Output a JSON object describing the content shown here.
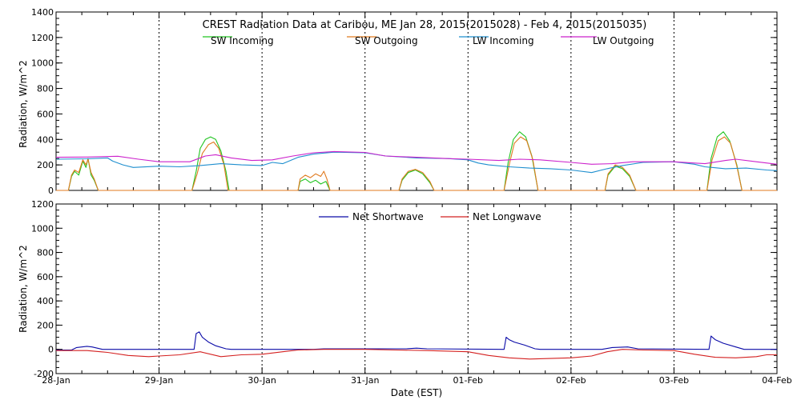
{
  "chart_data": [
    {
      "type": "line",
      "title": "CREST Radiation Data at Caribou, ME   Jan 28, 2015(2015028) - Feb  4, 2015(2015035)",
      "xlabel": "",
      "ylabel": "Radiation, W/m^2",
      "x_unit": "days since 28-Jan",
      "xlim": [
        0,
        7
      ],
      "ylim": [
        0,
        1400
      ],
      "yticks": [
        0,
        200,
        400,
        600,
        800,
        1000,
        1200,
        1400
      ],
      "xtick_labels": [
        "28-Jan",
        "29-Jan",
        "30-Jan",
        "31-Jan",
        "01-Feb",
        "02-Feb",
        "03-Feb",
        "04-Feb"
      ],
      "grid": true,
      "legend_position": "top",
      "series": [
        {
          "name": "SW Incoming",
          "color": "#22c522",
          "points": [
            [
              0,
              0
            ],
            [
              0.12,
              0
            ],
            [
              0.15,
              110
            ],
            [
              0.18,
              150
            ],
            [
              0.22,
              120
            ],
            [
              0.26,
              230
            ],
            [
              0.29,
              180
            ],
            [
              0.31,
              250
            ],
            [
              0.34,
              120
            ],
            [
              0.37,
              80
            ],
            [
              0.41,
              0
            ],
            [
              0.85,
              0
            ],
            [
              0.88,
              0
            ],
            [
              1.32,
              0
            ],
            [
              1.36,
              150
            ],
            [
              1.4,
              330
            ],
            [
              1.45,
              400
            ],
            [
              1.5,
              420
            ],
            [
              1.55,
              400
            ],
            [
              1.6,
              310
            ],
            [
              1.65,
              150
            ],
            [
              1.68,
              0
            ],
            [
              2.35,
              0
            ],
            [
              2.37,
              70
            ],
            [
              2.42,
              90
            ],
            [
              2.47,
              60
            ],
            [
              2.52,
              80
            ],
            [
              2.57,
              50
            ],
            [
              2.62,
              70
            ],
            [
              2.66,
              0
            ],
            [
              3.33,
              0
            ],
            [
              3.36,
              80
            ],
            [
              3.42,
              140
            ],
            [
              3.49,
              160
            ],
            [
              3.56,
              130
            ],
            [
              3.63,
              60
            ],
            [
              3.67,
              0
            ],
            [
              4.35,
              0
            ],
            [
              4.39,
              220
            ],
            [
              4.44,
              400
            ],
            [
              4.5,
              460
            ],
            [
              4.56,
              420
            ],
            [
              4.62,
              270
            ],
            [
              4.68,
              0
            ],
            [
              5.33,
              0
            ],
            [
              5.36,
              120
            ],
            [
              5.43,
              190
            ],
            [
              5.5,
              170
            ],
            [
              5.57,
              110
            ],
            [
              5.63,
              0
            ],
            [
              6.32,
              0
            ],
            [
              6.36,
              250
            ],
            [
              6.42,
              420
            ],
            [
              6.48,
              460
            ],
            [
              6.54,
              390
            ],
            [
              6.61,
              200
            ],
            [
              6.66,
              0
            ],
            [
              7,
              0
            ]
          ]
        },
        {
          "name": "SW Outgoing",
          "color": "#e07a1f",
          "points": [
            [
              0,
              0
            ],
            [
              0.12,
              0
            ],
            [
              0.15,
              120
            ],
            [
              0.18,
              160
            ],
            [
              0.22,
              140
            ],
            [
              0.26,
              240
            ],
            [
              0.29,
              200
            ],
            [
              0.31,
              245
            ],
            [
              0.34,
              140
            ],
            [
              0.37,
              90
            ],
            [
              0.41,
              0
            ],
            [
              1.32,
              0
            ],
            [
              1.37,
              130
            ],
            [
              1.42,
              290
            ],
            [
              1.48,
              360
            ],
            [
              1.53,
              380
            ],
            [
              1.58,
              330
            ],
            [
              1.63,
              200
            ],
            [
              1.67,
              0
            ],
            [
              2.35,
              0
            ],
            [
              2.37,
              90
            ],
            [
              2.42,
              120
            ],
            [
              2.47,
              100
            ],
            [
              2.52,
              130
            ],
            [
              2.57,
              110
            ],
            [
              2.6,
              150
            ],
            [
              2.63,
              90
            ],
            [
              2.66,
              0
            ],
            [
              3.33,
              0
            ],
            [
              3.36,
              90
            ],
            [
              3.42,
              150
            ],
            [
              3.49,
              165
            ],
            [
              3.56,
              140
            ],
            [
              3.63,
              70
            ],
            [
              3.67,
              0
            ],
            [
              4.35,
              0
            ],
            [
              4.4,
              200
            ],
            [
              4.45,
              370
            ],
            [
              4.51,
              420
            ],
            [
              4.57,
              390
            ],
            [
              4.63,
              240
            ],
            [
              4.68,
              0
            ],
            [
              5.33,
              0
            ],
            [
              5.36,
              130
            ],
            [
              5.43,
              200
            ],
            [
              5.5,
              180
            ],
            [
              5.57,
              120
            ],
            [
              5.63,
              0
            ],
            [
              6.32,
              0
            ],
            [
              6.37,
              240
            ],
            [
              6.43,
              390
            ],
            [
              6.49,
              420
            ],
            [
              6.55,
              370
            ],
            [
              6.61,
              190
            ],
            [
              6.66,
              0
            ],
            [
              7,
              0
            ]
          ]
        },
        {
          "name": "LW Incoming",
          "color": "#1f8fcf",
          "points": [
            [
              0,
              245
            ],
            [
              0.3,
              248
            ],
            [
              0.5,
              255
            ],
            [
              0.55,
              230
            ],
            [
              0.65,
              200
            ],
            [
              0.75,
              180
            ],
            [
              1.0,
              190
            ],
            [
              1.2,
              185
            ],
            [
              1.4,
              195
            ],
            [
              1.6,
              210
            ],
            [
              1.8,
              200
            ],
            [
              2.0,
              195
            ],
            [
              2.1,
              220
            ],
            [
              2.2,
              210
            ],
            [
              2.35,
              260
            ],
            [
              2.5,
              285
            ],
            [
              2.7,
              300
            ],
            [
              3.0,
              295
            ],
            [
              3.2,
              270
            ],
            [
              3.5,
              255
            ],
            [
              3.8,
              250
            ],
            [
              4.0,
              240
            ],
            [
              4.1,
              215
            ],
            [
              4.2,
              200
            ],
            [
              4.4,
              185
            ],
            [
              4.6,
              175
            ],
            [
              4.8,
              170
            ],
            [
              5.0,
              160
            ],
            [
              5.2,
              140
            ],
            [
              5.35,
              170
            ],
            [
              5.5,
              195
            ],
            [
              5.7,
              220
            ],
            [
              6.0,
              225
            ],
            [
              6.2,
              205
            ],
            [
              6.3,
              185
            ],
            [
              6.5,
              170
            ],
            [
              6.7,
              175
            ],
            [
              6.9,
              160
            ],
            [
              7,
              155
            ]
          ]
        },
        {
          "name": "LW Outgoing",
          "color": "#cc22cc",
          "points": [
            [
              0,
              260
            ],
            [
              0.3,
              262
            ],
            [
              0.6,
              268
            ],
            [
              0.8,
              245
            ],
            [
              1.0,
              225
            ],
            [
              1.3,
              225
            ],
            [
              1.45,
              270
            ],
            [
              1.55,
              280
            ],
            [
              1.7,
              255
            ],
            [
              1.9,
              235
            ],
            [
              2.1,
              240
            ],
            [
              2.3,
              270
            ],
            [
              2.5,
              295
            ],
            [
              2.7,
              305
            ],
            [
              3.0,
              298
            ],
            [
              3.2,
              270
            ],
            [
              3.5,
              260
            ],
            [
              3.8,
              250
            ],
            [
              4.0,
              245
            ],
            [
              4.3,
              235
            ],
            [
              4.5,
              245
            ],
            [
              4.7,
              240
            ],
            [
              5.0,
              220
            ],
            [
              5.2,
              205
            ],
            [
              5.4,
              210
            ],
            [
              5.6,
              225
            ],
            [
              6.0,
              225
            ],
            [
              6.2,
              215
            ],
            [
              6.3,
              210
            ],
            [
              6.5,
              235
            ],
            [
              6.6,
              245
            ],
            [
              6.8,
              225
            ],
            [
              7,
              205
            ]
          ]
        }
      ]
    },
    {
      "type": "line",
      "title": "",
      "xlabel": "Date (EST)",
      "ylabel": "Radiation, W/m^2",
      "x_unit": "days since 28-Jan",
      "xlim": [
        0,
        7
      ],
      "ylim": [
        -200,
        1200
      ],
      "yticks": [
        -200,
        0,
        200,
        400,
        600,
        800,
        1000,
        1200
      ],
      "xtick_labels": [
        "28-Jan",
        "29-Jan",
        "30-Jan",
        "31-Jan",
        "01-Feb",
        "02-Feb",
        "03-Feb",
        "04-Feb"
      ],
      "grid": true,
      "legend_position": "top",
      "series": [
        {
          "name": "Net Shortwave",
          "color": "#0a0aa8",
          "points": [
            [
              0,
              -5
            ],
            [
              0.15,
              -5
            ],
            [
              0.2,
              15
            ],
            [
              0.3,
              25
            ],
            [
              0.35,
              20
            ],
            [
              0.45,
              0
            ],
            [
              1.0,
              0
            ],
            [
              1.34,
              0
            ],
            [
              1.36,
              130
            ],
            [
              1.39,
              145
            ],
            [
              1.42,
              100
            ],
            [
              1.48,
              60
            ],
            [
              1.55,
              30
            ],
            [
              1.65,
              5
            ],
            [
              1.7,
              0
            ],
            [
              2.5,
              0
            ],
            [
              2.6,
              5
            ],
            [
              3.4,
              5
            ],
            [
              3.5,
              10
            ],
            [
              3.6,
              5
            ],
            [
              4.35,
              0
            ],
            [
              4.37,
              100
            ],
            [
              4.4,
              80
            ],
            [
              4.45,
              60
            ],
            [
              4.55,
              35
            ],
            [
              4.65,
              5
            ],
            [
              4.7,
              0
            ],
            [
              5.3,
              0
            ],
            [
              5.4,
              15
            ],
            [
              5.55,
              20
            ],
            [
              5.65,
              5
            ],
            [
              6.34,
              0
            ],
            [
              6.36,
              110
            ],
            [
              6.4,
              80
            ],
            [
              6.48,
              50
            ],
            [
              6.6,
              20
            ],
            [
              6.68,
              0
            ],
            [
              7,
              0
            ]
          ]
        },
        {
          "name": "Net Longwave",
          "color": "#d42020",
          "points": [
            [
              0,
              -10
            ],
            [
              0.3,
              -10
            ],
            [
              0.5,
              -25
            ],
            [
              0.7,
              -50
            ],
            [
              0.9,
              -60
            ],
            [
              1.0,
              -55
            ],
            [
              1.2,
              -45
            ],
            [
              1.4,
              -20
            ],
            [
              1.6,
              -60
            ],
            [
              1.8,
              -45
            ],
            [
              2.0,
              -40
            ],
            [
              2.2,
              -20
            ],
            [
              2.35,
              -5
            ],
            [
              2.6,
              0
            ],
            [
              3.0,
              0
            ],
            [
              3.3,
              -5
            ],
            [
              3.6,
              -10
            ],
            [
              4.0,
              -20
            ],
            [
              4.2,
              -50
            ],
            [
              4.4,
              -70
            ],
            [
              4.6,
              -80
            ],
            [
              4.8,
              -75
            ],
            [
              5.0,
              -70
            ],
            [
              5.2,
              -55
            ],
            [
              5.35,
              -20
            ],
            [
              5.5,
              0
            ],
            [
              5.7,
              -5
            ],
            [
              6.0,
              -10
            ],
            [
              6.2,
              -40
            ],
            [
              6.4,
              -65
            ],
            [
              6.6,
              -70
            ],
            [
              6.8,
              -60
            ],
            [
              6.9,
              -45
            ],
            [
              7,
              -45
            ]
          ]
        }
      ]
    }
  ]
}
